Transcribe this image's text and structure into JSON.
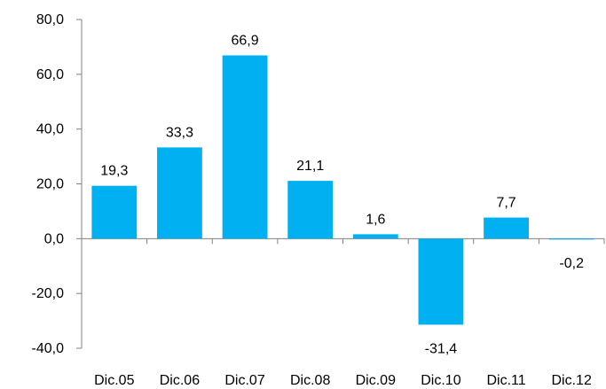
{
  "chart_data": {
    "type": "bar",
    "title": "",
    "xlabel": "",
    "ylabel": "",
    "categories": [
      "Dic.05",
      "Dic.06",
      "Dic.07",
      "Dic.08",
      "Dic.09",
      "Dic.10",
      "Dic.11",
      "Dic.12"
    ],
    "values": [
      19.3,
      33.3,
      66.9,
      21.1,
      1.6,
      -31.4,
      7.7,
      -0.2
    ],
    "value_labels": [
      "19,3",
      "33,3",
      "66,9",
      "21,1",
      "1,6",
      "-31,4",
      "7,7",
      "-0,2"
    ],
    "ylim": [
      -40,
      80
    ],
    "yticks": [
      80,
      60,
      40,
      20,
      0,
      -20,
      -40
    ],
    "ytick_labels": [
      "80,0",
      "60,0",
      "40,0",
      "20,0",
      "0,0",
      "-20,0",
      "-40,0"
    ],
    "grid": false,
    "legend": "none",
    "bar_color": "#00b0f0",
    "axis_color": "#808080"
  }
}
